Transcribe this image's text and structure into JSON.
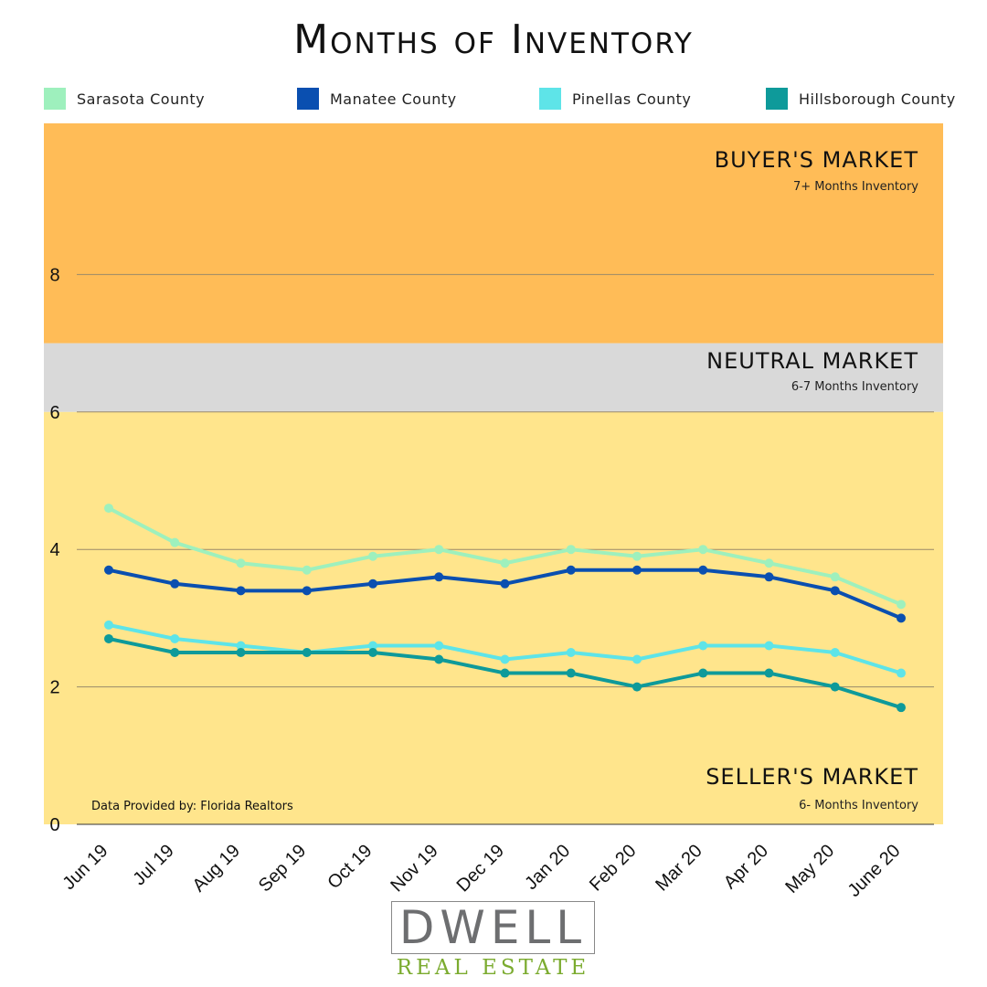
{
  "chart_data": {
    "type": "line",
    "title": "Months of Inventory",
    "categories": [
      "Jun 19",
      "Jul 19",
      "Aug 19",
      "Sep 19",
      "Oct 19",
      "Nov 19",
      "Dec 19",
      "Jan 20",
      "Feb 20",
      "Mar 20",
      "Apr 20",
      "May 20",
      "June 20"
    ],
    "series": [
      {
        "name": "Sarasota County",
        "color": "#9ef0bd",
        "values": [
          4.6,
          4.1,
          3.8,
          3.7,
          3.9,
          4.0,
          3.8,
          4.0,
          3.9,
          4.0,
          3.8,
          3.6,
          3.2
        ]
      },
      {
        "name": "Manatee County",
        "color": "#0a4fb0",
        "values": [
          3.7,
          3.5,
          3.4,
          3.4,
          3.5,
          3.6,
          3.5,
          3.7,
          3.7,
          3.7,
          3.6,
          3.4,
          3.0
        ]
      },
      {
        "name": "Pinellas County",
        "color": "#5ee4e8",
        "values": [
          2.9,
          2.7,
          2.6,
          2.5,
          2.6,
          2.6,
          2.4,
          2.5,
          2.4,
          2.6,
          2.6,
          2.5,
          2.2
        ]
      },
      {
        "name": "Hillsborough County",
        "color": "#0e9a9a",
        "values": [
          2.7,
          2.5,
          2.5,
          2.5,
          2.5,
          2.4,
          2.2,
          2.2,
          2.0,
          2.2,
          2.2,
          2.0,
          1.7
        ]
      }
    ],
    "y_ticks": [
      "0",
      "2",
      "4",
      "6",
      "8"
    ],
    "ylim": [
      0,
      10.2
    ],
    "bands": [
      {
        "from": 7,
        "to": 10.2,
        "color": "#ffbc57",
        "label": "BUYER'S MARKET",
        "sublabel": "7+ Months Inventory"
      },
      {
        "from": 6,
        "to": 7,
        "color": "#d9d9d9",
        "label": "NEUTRAL MARKET",
        "sublabel": "6-7 Months Inventory"
      },
      {
        "from": 0,
        "to": 6,
        "color": "#ffe58c",
        "label": "SELLER'S MARKET",
        "sublabel": "6- Months Inventory"
      }
    ],
    "source_note": "Data Provided by: Florida Realtors",
    "legend_position": "top"
  },
  "logo": {
    "word": "DWELL",
    "sub": "REAL ESTATE"
  }
}
